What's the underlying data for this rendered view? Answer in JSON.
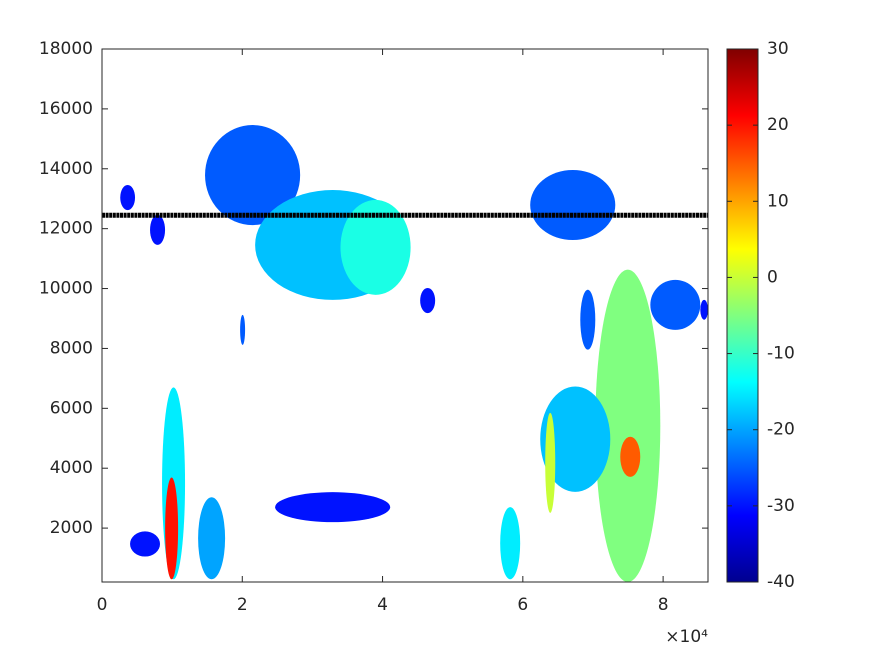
{
  "chart_data": {
    "type": "heatmap",
    "xlim": [
      0,
      86400
    ],
    "xticks": [
      {
        "value": 0,
        "label": "0"
      },
      {
        "value": 20000,
        "label": "2"
      },
      {
        "value": 40000,
        "label": "4"
      },
      {
        "value": 60000,
        "label": "6"
      },
      {
        "value": 80000,
        "label": "8"
      }
    ],
    "x_exponent": "×10⁴",
    "ylim": [
      200,
      18000
    ],
    "yticks": [
      2000,
      4000,
      6000,
      8000,
      10000,
      12000,
      14000,
      16000,
      18000
    ],
    "clim": [
      -40,
      30
    ],
    "cticks": [
      -40,
      -30,
      -20,
      -10,
      0,
      10,
      20,
      30
    ],
    "colormap": "jet",
    "cells": [
      {
        "x": [
          70330,
          79600
        ],
        "y": [
          200,
          10630
        ],
        "value": -5
      },
      {
        "x": [
          14690,
          28250
        ],
        "y": [
          12120,
          15460
        ],
        "value": -25
      },
      {
        "x": [
          21830,
          43940
        ],
        "y": [
          9620,
          13290
        ],
        "value": -18
      },
      {
        "x": [
          34000,
          44000
        ],
        "y": [
          9790,
          12960
        ],
        "value": -12
      },
      {
        "x": [
          2600,
          4710
        ],
        "y": [
          12620,
          13460
        ],
        "value": -30
      },
      {
        "x": [
          6850,
          8990
        ],
        "y": [
          11460,
          12460
        ],
        "value": -30
      },
      {
        "x": [
          61050,
          73180
        ],
        "y": [
          11620,
          13960
        ],
        "value": -25
      },
      {
        "x": [
          78180,
          85300
        ],
        "y": [
          8620,
          10290
        ],
        "value": -25
      },
      {
        "x": [
          62480,
          72470
        ],
        "y": [
          3210,
          6730
        ],
        "value": -18
      },
      {
        "x": [
          68190,
          70330
        ],
        "y": [
          7960,
          9960
        ],
        "value": -25
      },
      {
        "x": [
          19690,
          20400
        ],
        "y": [
          8120,
          9120
        ],
        "value": -25
      },
      {
        "x": [
          45360,
          47500
        ],
        "y": [
          9180,
          10020
        ],
        "value": -30
      },
      {
        "x": [
          85300,
          86400
        ],
        "y": [
          8960,
          9620
        ],
        "value": -30
      },
      {
        "x": [
          8560,
          11840
        ],
        "y": [
          290,
          6700
        ],
        "value": -15
      },
      {
        "x": [
          13700,
          17550
        ],
        "y": [
          290,
          3030
        ],
        "value": -20
      },
      {
        "x": [
          24680,
          41090
        ],
        "y": [
          2200,
          3200
        ],
        "value": -30
      },
      {
        "x": [
          56770,
          59620
        ],
        "y": [
          290,
          2700
        ],
        "value": -15
      },
      {
        "x": [
          4000,
          8270
        ],
        "y": [
          1050,
          1890
        ],
        "value": -30
      },
      {
        "x": [
          63190,
          64620
        ],
        "y": [
          2510,
          5850
        ],
        "value": 0
      },
      {
        "x": [
          73890,
          76740
        ],
        "y": [
          3710,
          5050
        ],
        "value": 15
      },
      {
        "x": [
          9000,
          10850
        ],
        "y": [
          290,
          3690
        ],
        "value": 20
      }
    ],
    "line": {
      "x": [
        0,
        86400
      ],
      "y": [
        12450,
        12450
      ],
      "color": "#000000"
    }
  }
}
